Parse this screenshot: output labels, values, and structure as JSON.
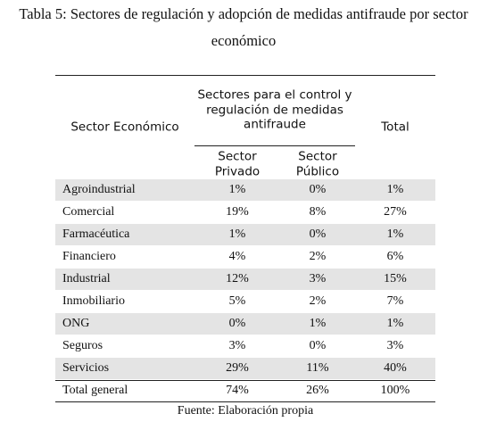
{
  "title": [
    "Tabla 5: Sectores de regulación y adopción de medidas antifraude por sector",
    "económico"
  ],
  "table": {
    "header": {
      "sector": "Sector Económico",
      "group": [
        "Sectores para el control y",
        "regulación de medidas",
        "antifraude"
      ],
      "private": [
        "Sector",
        "Privado"
      ],
      "public": [
        "Sector",
        "Público"
      ],
      "total": "Total"
    },
    "rows": [
      [
        "Agroindustrial",
        "1%",
        "0%",
        "1%"
      ],
      [
        "Comercial",
        "19%",
        "8%",
        "27%"
      ],
      [
        "Farmacéutica",
        "1%",
        "0%",
        "1%"
      ],
      [
        "Financiero",
        "4%",
        "2%",
        "6%"
      ],
      [
        "Industrial",
        "12%",
        "3%",
        "15%"
      ],
      [
        "Inmobiliario",
        "5%",
        "2%",
        "7%"
      ],
      [
        "ONG",
        "0%",
        "1%",
        "1%"
      ],
      [
        "Seguros",
        "3%",
        "0%",
        "3%"
      ],
      [
        "Servicios",
        "29%",
        "11%",
        "40%"
      ]
    ],
    "total_row": [
      "Total general",
      "74%",
      "26%",
      "100%"
    ]
  },
  "source": "Fuente: Elaboración propia"
}
